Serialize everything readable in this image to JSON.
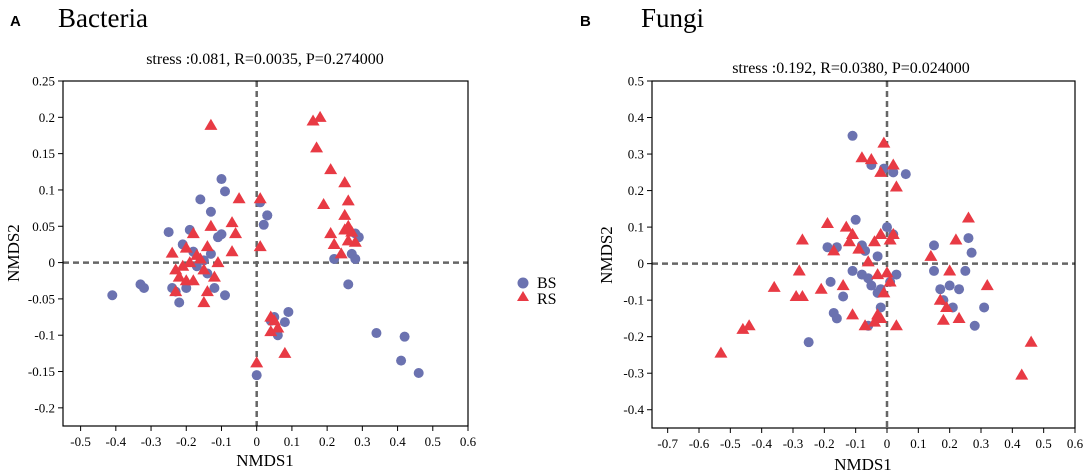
{
  "legend": {
    "series": [
      {
        "name": "BS",
        "marker": "circle",
        "color": "#6b72b0"
      },
      {
        "name": "RS",
        "marker": "triangle",
        "color": "#e83a44"
      }
    ]
  },
  "chart_data": [
    {
      "type": "scatter",
      "panel_letter": "A",
      "title": "Bacteria",
      "subtitle": "stress :0.081, R=0.0035, P=0.274000",
      "xlabel": "NMDS1",
      "ylabel": "NMDS2",
      "xlim": [
        -0.55,
        0.6
      ],
      "ylim": [
        -0.225,
        0.25
      ],
      "xticks": [
        -0.5,
        -0.4,
        -0.3,
        -0.2,
        -0.1,
        0,
        0.1,
        0.2,
        0.3,
        0.4,
        0.5,
        0.6
      ],
      "yticks": [
        -0.2,
        -0.15,
        -0.1,
        -0.05,
        0,
        0.05,
        0.1,
        0.15,
        0.2,
        0.25
      ],
      "reference_lines": {
        "x": 0,
        "y": 0
      },
      "series": [
        {
          "name": "BS",
          "points": [
            [
              -0.41,
              -0.045
            ],
            [
              -0.33,
              -0.03
            ],
            [
              -0.32,
              -0.035
            ],
            [
              -0.25,
              0.042
            ],
            [
              -0.24,
              -0.035
            ],
            [
              -0.23,
              -0.04
            ],
            [
              -0.22,
              -0.055
            ],
            [
              -0.2,
              -0.035
            ],
            [
              -0.21,
              0.025
            ],
            [
              -0.19,
              0.045
            ],
            [
              -0.18,
              0.015
            ],
            [
              -0.17,
              -0.005
            ],
            [
              -0.16,
              0.087
            ],
            [
              -0.14,
              -0.015
            ],
            [
              -0.13,
              0.012
            ],
            [
              -0.12,
              -0.035
            ],
            [
              -0.11,
              0.035
            ],
            [
              -0.1,
              0.039
            ],
            [
              -0.1,
              0.115
            ],
            [
              -0.09,
              0.098
            ],
            [
              -0.09,
              -0.045
            ],
            [
              -0.13,
              0.07
            ],
            [
              -0.15,
              0.003
            ],
            [
              0.01,
              0.083
            ],
            [
              0.03,
              0.065
            ],
            [
              0.02,
              0.052
            ],
            [
              0.03,
              0.065
            ],
            [
              0.04,
              -0.08
            ],
            [
              0.05,
              -0.075
            ],
            [
              0.06,
              -0.1
            ],
            [
              0.08,
              -0.082
            ],
            [
              0.09,
              -0.068
            ],
            [
              0.0,
              -0.155
            ],
            [
              0.22,
              0.005
            ],
            [
              0.26,
              -0.03
            ],
            [
              0.27,
              0.012
            ],
            [
              0.28,
              0.04
            ],
            [
              0.29,
              0.035
            ],
            [
              0.28,
              0.005
            ],
            [
              0.34,
              -0.097
            ],
            [
              0.42,
              -0.102
            ],
            [
              0.41,
              -0.135
            ],
            [
              0.46,
              -0.152
            ]
          ]
        },
        {
          "name": "RS",
          "points": [
            [
              -0.24,
              0.013
            ],
            [
              -0.23,
              -0.01
            ],
            [
              -0.22,
              -0.02
            ],
            [
              -0.21,
              -0.005
            ],
            [
              -0.2,
              0.02
            ],
            [
              -0.19,
              0.0
            ],
            [
              -0.18,
              -0.025
            ],
            [
              -0.17,
              0.01
            ],
            [
              -0.16,
              0.005
            ],
            [
              -0.15,
              -0.01
            ],
            [
              -0.14,
              0.022
            ],
            [
              -0.15,
              -0.055
            ],
            [
              -0.14,
              -0.04
            ],
            [
              -0.13,
              0.189
            ],
            [
              -0.12,
              -0.02
            ],
            [
              -0.13,
              0.05
            ],
            [
              -0.11,
              0.0
            ],
            [
              -0.05,
              0.088
            ],
            [
              -0.07,
              0.055
            ],
            [
              -0.06,
              0.04
            ],
            [
              -0.07,
              0.015
            ],
            [
              -0.18,
              0.04
            ],
            [
              -0.2,
              -0.025
            ],
            [
              -0.23,
              -0.04
            ],
            [
              0.01,
              0.088
            ],
            [
              0.01,
              0.022
            ],
            [
              0.0,
              -0.138
            ],
            [
              0.04,
              -0.075
            ],
            [
              0.05,
              -0.08
            ],
            [
              0.04,
              -0.095
            ],
            [
              0.06,
              -0.09
            ],
            [
              0.08,
              -0.125
            ],
            [
              0.16,
              0.195
            ],
            [
              0.18,
              0.2
            ],
            [
              0.17,
              0.158
            ],
            [
              0.21,
              0.128
            ],
            [
              0.19,
              0.08
            ],
            [
              0.21,
              0.04
            ],
            [
              0.22,
              0.025
            ],
            [
              0.25,
              0.11
            ],
            [
              0.26,
              0.085
            ],
            [
              0.25,
              0.065
            ],
            [
              0.25,
              0.045
            ],
            [
              0.26,
              0.03
            ],
            [
              0.24,
              0.012
            ],
            [
              0.26,
              0.05
            ],
            [
              0.28,
              0.028
            ],
            [
              0.27,
              0.042
            ]
          ]
        }
      ]
    },
    {
      "type": "scatter",
      "panel_letter": "B",
      "title": "Fungi",
      "subtitle": "stress :0.192, R=0.0380, P=0.024000",
      "xlabel": "NMDS1",
      "ylabel": "NMDS2",
      "xlim": [
        -0.75,
        0.6
      ],
      "ylim": [
        -0.45,
        0.5
      ],
      "xticks": [
        -0.7,
        -0.6,
        -0.5,
        -0.4,
        -0.3,
        -0.2,
        -0.1,
        0,
        0.1,
        0.2,
        0.3,
        0.4,
        0.5,
        0.6
      ],
      "yticks": [
        -0.4,
        -0.3,
        -0.2,
        -0.1,
        0,
        0.1,
        0.2,
        0.3,
        0.4,
        0.5
      ],
      "reference_lines": {
        "x": 0,
        "y": 0
      },
      "series": [
        {
          "name": "BS",
          "points": [
            [
              -0.11,
              0.35
            ],
            [
              -0.1,
              0.12
            ],
            [
              -0.19,
              0.045
            ],
            [
              -0.16,
              0.045
            ],
            [
              -0.08,
              0.05
            ],
            [
              -0.07,
              0.035
            ],
            [
              -0.18,
              -0.05
            ],
            [
              -0.17,
              -0.135
            ],
            [
              -0.16,
              -0.15
            ],
            [
              -0.14,
              -0.09
            ],
            [
              -0.11,
              -0.02
            ],
            [
              -0.08,
              -0.03
            ],
            [
              -0.06,
              -0.04
            ],
            [
              -0.05,
              -0.06
            ],
            [
              -0.03,
              0.02
            ],
            [
              -0.02,
              -0.07
            ],
            [
              -0.03,
              -0.08
            ],
            [
              -0.02,
              -0.12
            ],
            [
              -0.25,
              -0.215
            ],
            [
              -0.06,
              -0.17
            ],
            [
              -0.05,
              0.27
            ],
            [
              -0.01,
              0.26
            ],
            [
              0.02,
              0.25
            ],
            [
              0.06,
              0.245
            ],
            [
              0.0,
              0.1
            ],
            [
              0.02,
              0.08
            ],
            [
              0.01,
              -0.05
            ],
            [
              0.03,
              -0.03
            ],
            [
              0.15,
              0.05
            ],
            [
              0.15,
              -0.02
            ],
            [
              0.17,
              -0.07
            ],
            [
              0.18,
              -0.1
            ],
            [
              0.2,
              -0.06
            ],
            [
              0.21,
              -0.12
            ],
            [
              0.23,
              -0.07
            ],
            [
              0.26,
              0.07
            ],
            [
              0.27,
              0.03
            ],
            [
              0.28,
              -0.17
            ],
            [
              0.31,
              -0.12
            ],
            [
              0.25,
              -0.02
            ]
          ]
        },
        {
          "name": "RS",
          "points": [
            [
              -0.53,
              -0.245
            ],
            [
              -0.46,
              -0.18
            ],
            [
              -0.44,
              -0.17
            ],
            [
              -0.36,
              -0.065
            ],
            [
              -0.29,
              -0.09
            ],
            [
              -0.28,
              -0.02
            ],
            [
              -0.27,
              -0.09
            ],
            [
              -0.27,
              0.065
            ],
            [
              -0.21,
              -0.07
            ],
            [
              -0.19,
              0.11
            ],
            [
              -0.17,
              0.035
            ],
            [
              -0.14,
              -0.06
            ],
            [
              -0.13,
              0.1
            ],
            [
              -0.12,
              0.06
            ],
            [
              -0.11,
              0.08
            ],
            [
              -0.09,
              0.04
            ],
            [
              -0.08,
              0.29
            ],
            [
              -0.05,
              0.285
            ],
            [
              -0.06,
              0.005
            ],
            [
              -0.04,
              0.06
            ],
            [
              -0.07,
              -0.17
            ],
            [
              -0.04,
              -0.16
            ],
            [
              -0.03,
              -0.14
            ],
            [
              -0.02,
              0.08
            ],
            [
              -0.01,
              0.33
            ],
            [
              -0.02,
              0.25
            ],
            [
              0.02,
              0.27
            ],
            [
              0.03,
              0.21
            ],
            [
              0.01,
              0.065
            ],
            [
              0.02,
              0.08
            ],
            [
              0.0,
              -0.025
            ],
            [
              -0.03,
              -0.03
            ],
            [
              0.01,
              -0.05
            ],
            [
              -0.01,
              -0.08
            ],
            [
              -0.02,
              -0.15
            ],
            [
              0.03,
              -0.17
            ],
            [
              0.14,
              0.02
            ],
            [
              0.17,
              -0.1
            ],
            [
              0.19,
              -0.12
            ],
            [
              0.18,
              -0.155
            ],
            [
              0.2,
              -0.02
            ],
            [
              0.22,
              0.065
            ],
            [
              0.23,
              -0.15
            ],
            [
              0.26,
              0.125
            ],
            [
              0.32,
              -0.06
            ],
            [
              0.43,
              -0.305
            ],
            [
              0.46,
              -0.215
            ],
            [
              -0.11,
              -0.14
            ]
          ]
        }
      ]
    }
  ]
}
